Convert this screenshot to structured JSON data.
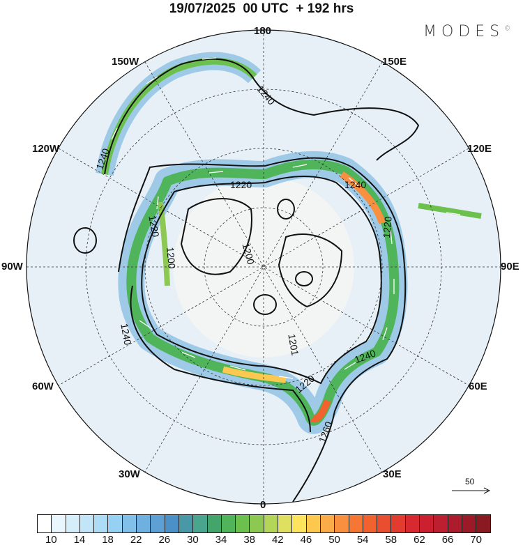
{
  "title": "19/07/2025  00 UTC  + 192 hrs",
  "logo": {
    "text": "MODES",
    "mark": "©"
  },
  "longitude_labels": {
    "top": "180",
    "bottom": "0",
    "left": "90W",
    "right": "90E",
    "w150": "150W",
    "e150": "150E",
    "w120": "120W",
    "e120": "120E",
    "w60": "60W",
    "e60": "60E",
    "w30": "30W",
    "e30": "30E"
  },
  "contour_labels": [
    "1240",
    "1240",
    "1220",
    "1220",
    "1200",
    "1200",
    "1220",
    "1240",
    "1240",
    "1220",
    "1201",
    "1240",
    "1260"
  ],
  "reference_vector": {
    "label": "50"
  },
  "colorbar": {
    "ticks": [
      "10",
      "14",
      "18",
      "22",
      "26",
      "30",
      "34",
      "38",
      "42",
      "46",
      "50",
      "54",
      "58",
      "62",
      "66",
      "70"
    ],
    "colors": [
      "#ffffff",
      "#eaf6fd",
      "#d6eefa",
      "#c2e6f8",
      "#acdcf6",
      "#96d0f2",
      "#82c0ea",
      "#6eb0e0",
      "#5e9fd4",
      "#4b90c6",
      "#4898a8",
      "#4aa58e",
      "#44a56a",
      "#4fb45a",
      "#6cc04e",
      "#8cc852",
      "#b4d658",
      "#e0e060",
      "#fce45c",
      "#fcc850",
      "#faac48",
      "#f89040",
      "#f67634",
      "#f2622e",
      "#ea4e30",
      "#e23c30",
      "#d82830",
      "#cc2030",
      "#bc2030",
      "#ac1c2c",
      "#9a1a28",
      "#8a1a22"
    ]
  }
}
